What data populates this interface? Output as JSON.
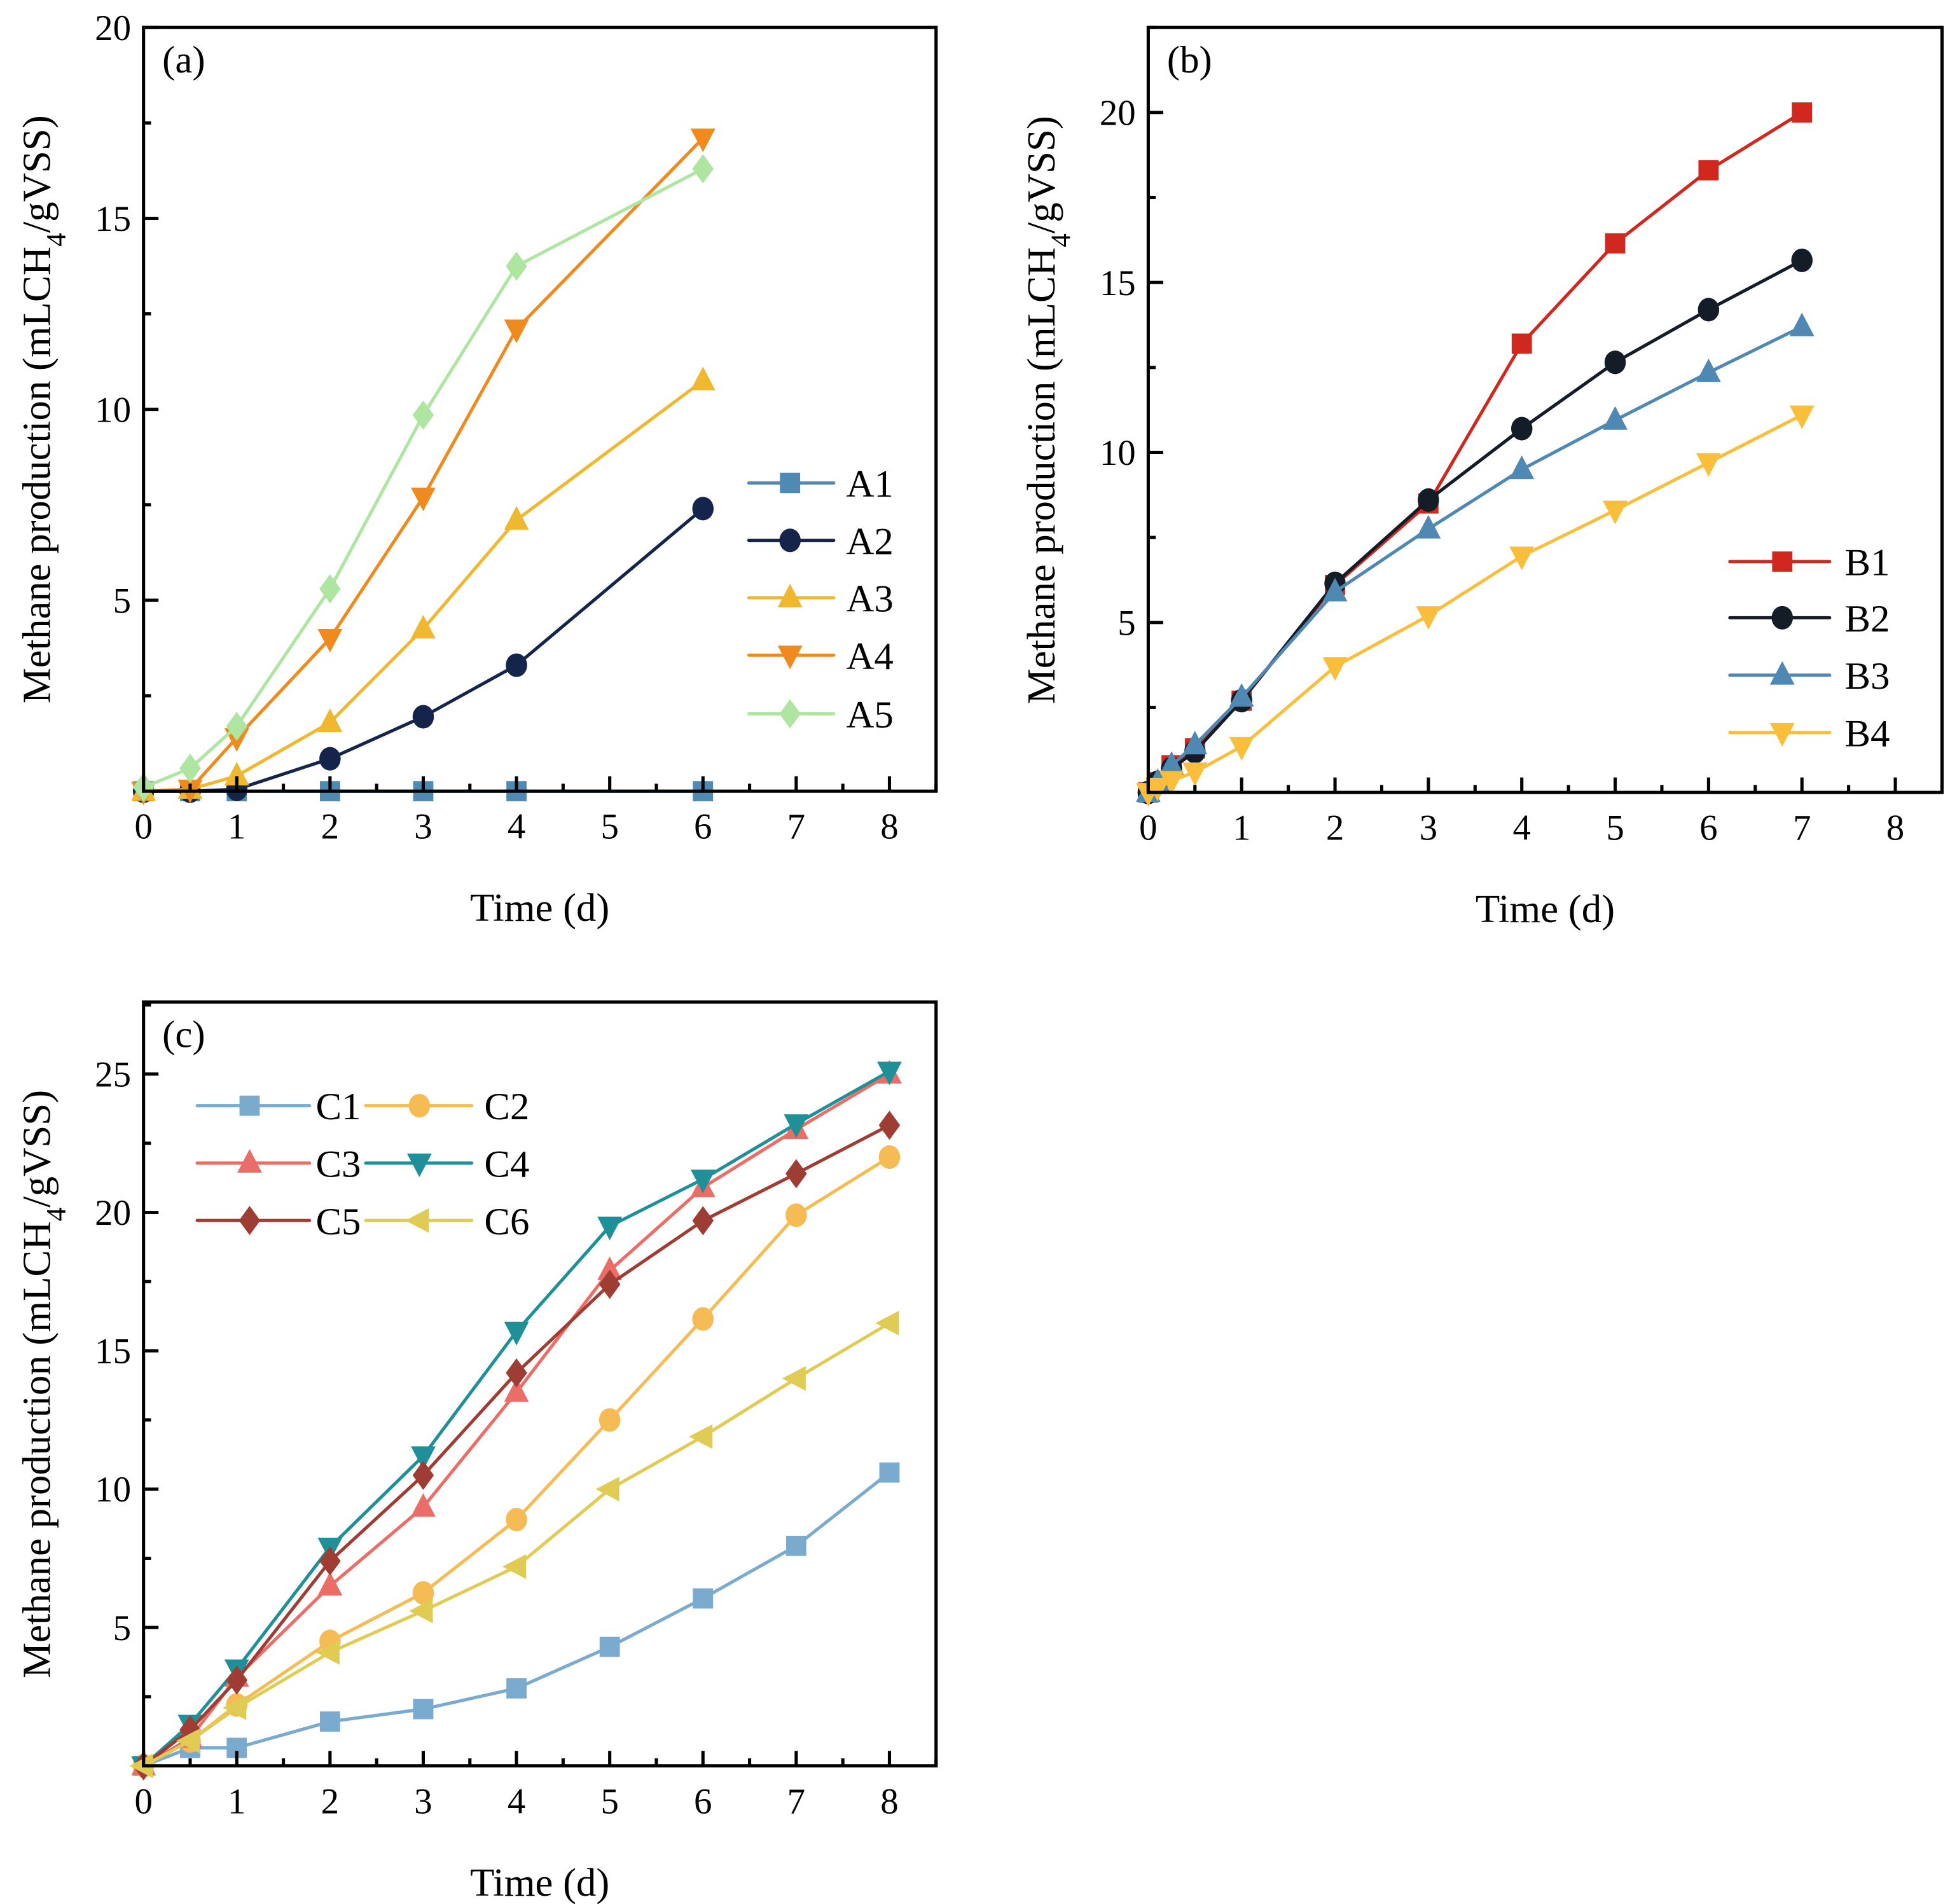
{
  "chart_data": [
    {
      "type": "line",
      "panel_label": "(a)",
      "xlabel": "Time (d)",
      "ylabel": "Methane production (mLCH4/gVSS)",
      "xlim": [
        0,
        8.5
      ],
      "ylim": [
        0,
        20
      ],
      "xticks": [
        0,
        1,
        2,
        3,
        4,
        5,
        6,
        7,
        8
      ],
      "yticks": [
        5,
        10,
        15,
        20
      ],
      "x_minor_step": 0.5,
      "y_minor_step": 2.5,
      "legend_placement": "center-right",
      "legend_columns": 1,
      "series": [
        {
          "name": "A1",
          "color": "#4f8ab5",
          "marker": "square",
          "x": [
            0,
            0.5,
            1,
            2,
            3,
            4,
            6
          ],
          "y": [
            0,
            0,
            0,
            0,
            0,
            0,
            0
          ]
        },
        {
          "name": "A2",
          "color": "#15244a",
          "marker": "circle",
          "x": [
            0,
            0.5,
            1,
            2,
            3,
            4,
            6
          ],
          "y": [
            0,
            0,
            0.05,
            0.85,
            1.95,
            3.3,
            7.4
          ]
        },
        {
          "name": "A3",
          "color": "#f0b830",
          "marker": "triangle-up",
          "x": [
            0,
            0.5,
            1,
            2,
            3,
            4,
            6
          ],
          "y": [
            0,
            0.05,
            0.4,
            1.8,
            4.25,
            7.1,
            10.75
          ]
        },
        {
          "name": "A4",
          "color": "#ef8a1f",
          "marker": "triangle-down",
          "x": [
            0,
            0.5,
            1,
            2,
            3,
            4,
            6
          ],
          "y": [
            0,
            0.05,
            1.4,
            4.0,
            7.7,
            12.1,
            17.1
          ]
        },
        {
          "name": "A5",
          "color": "#aee5a0",
          "marker": "diamond",
          "x": [
            0,
            0.5,
            1,
            2,
            3,
            4,
            6
          ],
          "y": [
            0.1,
            0.6,
            1.7,
            5.3,
            9.85,
            13.75,
            16.3
          ]
        }
      ]
    },
    {
      "type": "line",
      "panel_label": "(b)",
      "xlabel": "Time (d)",
      "ylabel": "Methane production (mLCH4/gVSS)",
      "xlim": [
        0,
        8.5
      ],
      "ylim": [
        0,
        22.5
      ],
      "xticks": [
        0,
        1,
        2,
        3,
        4,
        5,
        6,
        7,
        8
      ],
      "yticks": [
        5,
        10,
        15,
        20
      ],
      "x_minor_step": 0.5,
      "y_minor_step": 2.5,
      "legend_placement": "lower-right",
      "legend_columns": 1,
      "series": [
        {
          "name": "B1",
          "color": "#d0281f",
          "marker": "square",
          "x": [
            0,
            0.1,
            0.25,
            0.5,
            1,
            2,
            3,
            4,
            5,
            6,
            7
          ],
          "y": [
            0,
            0.3,
            0.8,
            1.3,
            2.7,
            6.1,
            8.5,
            13.2,
            16.15,
            18.3,
            20.0
          ]
        },
        {
          "name": "B2",
          "color": "#141c28",
          "marker": "circle",
          "x": [
            0,
            0.1,
            0.25,
            0.5,
            1,
            2,
            3,
            4,
            5,
            6,
            7
          ],
          "y": [
            0,
            0.3,
            0.7,
            1.2,
            2.7,
            6.15,
            8.6,
            10.7,
            12.65,
            14.2,
            15.65
          ]
        },
        {
          "name": "B3",
          "color": "#4f89b3",
          "marker": "triangle-up",
          "x": [
            0,
            0.1,
            0.25,
            0.5,
            1,
            2,
            3,
            4,
            5,
            6,
            7
          ],
          "y": [
            0,
            0.3,
            0.8,
            1.4,
            2.8,
            5.9,
            7.75,
            9.5,
            10.95,
            12.35,
            13.7
          ]
        },
        {
          "name": "B4",
          "color": "#f9be3c",
          "marker": "triangle-down",
          "x": [
            0,
            0.1,
            0.25,
            0.5,
            1,
            2,
            3,
            4,
            5,
            6,
            7
          ],
          "y": [
            0,
            0.15,
            0.35,
            0.6,
            1.35,
            3.7,
            5.2,
            6.95,
            8.3,
            9.7,
            11.1
          ]
        }
      ]
    },
    {
      "type": "line",
      "panel_label": "(c)",
      "xlabel": "Time (d)",
      "ylabel": "Methane production (mLCH4/gVSS)",
      "xlim": [
        0,
        8.5
      ],
      "ylim": [
        0,
        27.6
      ],
      "xticks": [
        0,
        1,
        2,
        3,
        4,
        5,
        6,
        7,
        8
      ],
      "yticks": [
        5,
        10,
        15,
        20,
        25
      ],
      "x_minor_step": 0.5,
      "y_minor_step": 2.5,
      "legend_placement": "upper-left",
      "legend_columns": 2,
      "series": [
        {
          "name": "C1",
          "color": "#7aaacd",
          "marker": "square",
          "x": [
            0,
            0.5,
            1,
            2,
            3,
            4,
            5,
            6,
            7,
            8
          ],
          "y": [
            0,
            0.65,
            0.65,
            1.6,
            2.05,
            2.8,
            4.3,
            6.05,
            7.95,
            10.6
          ]
        },
        {
          "name": "C2",
          "color": "#f5bb55",
          "marker": "circle",
          "x": [
            0,
            0.5,
            1,
            2,
            3,
            4,
            5,
            6,
            7,
            8
          ],
          "y": [
            0,
            0.9,
            2.2,
            4.5,
            6.25,
            8.9,
            12.5,
            16.15,
            19.9,
            22.0
          ]
        },
        {
          "name": "C3",
          "color": "#ea6d67",
          "marker": "triangle-up",
          "x": [
            0,
            0.5,
            1,
            2,
            3,
            4,
            5,
            6,
            7,
            8
          ],
          "y": [
            0,
            1.0,
            3.2,
            6.5,
            9.35,
            13.5,
            17.9,
            20.9,
            23.0,
            25.0
          ]
        },
        {
          "name": "C4",
          "color": "#1f8f98",
          "marker": "triangle-down",
          "x": [
            0,
            0.5,
            1,
            2,
            3,
            4,
            5,
            6,
            7,
            8
          ],
          "y": [
            0,
            1.5,
            3.5,
            7.9,
            11.2,
            15.7,
            19.5,
            21.2,
            23.2,
            25.1
          ]
        },
        {
          "name": "C5",
          "color": "#9e3d33",
          "marker": "diamond",
          "x": [
            0,
            0.5,
            1,
            2,
            3,
            4,
            5,
            6,
            7,
            8
          ],
          "y": [
            0,
            1.3,
            3.1,
            7.4,
            10.5,
            14.2,
            17.4,
            19.7,
            21.4,
            23.15
          ]
        },
        {
          "name": "C6",
          "color": "#e0cc55",
          "marker": "triangle-left",
          "x": [
            0,
            0.5,
            1,
            2,
            3,
            4,
            5,
            6,
            7,
            8
          ],
          "y": [
            0,
            0.9,
            2.1,
            4.1,
            5.6,
            7.2,
            10.0,
            11.9,
            14.0,
            16.0
          ]
        }
      ]
    }
  ]
}
